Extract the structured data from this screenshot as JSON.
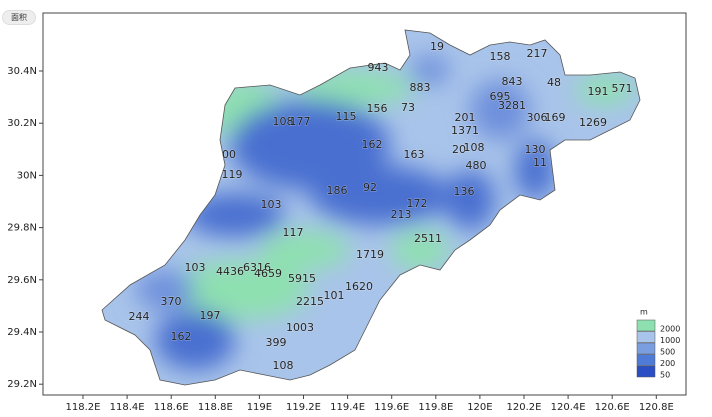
{
  "button": "面积",
  "x_axis": [
    "118.2E",
    "118.4E",
    "118.6E",
    "118.8E",
    "119E",
    "119.2E",
    "119.4E",
    "119.6E",
    "119.8E",
    "120E",
    "120.2E",
    "120.4E",
    "120.6E",
    "120.8E"
  ],
  "y_axis": [
    "30.4N",
    "30.2N",
    "30N",
    "29.8N",
    "29.6N",
    "29.4N",
    "29.2N"
  ],
  "station_labels": [
    19,
    158,
    217,
    943,
    883,
    843,
    48,
    191,
    571,
    695,
    3281,
    108,
    177,
    115,
    156,
    73,
    201,
    306,
    169,
    1269,
    1371,
    162,
    20,
    108,
    130,
    163,
    480,
    11,
    "00",
    119,
    186,
    92,
    136,
    103,
    172,
    213,
    117,
    2511,
    1719,
    103,
    4436,
    6316,
    4659,
    5915,
    1620,
    370,
    2215,
    101,
    244,
    197,
    1003,
    162,
    399,
    108
  ],
  "legend": {
    "unit": "m",
    "items": [
      {
        "label": 2000,
        "color": "#8ee0b0"
      },
      {
        "label": 1000,
        "color": "#a9c4ea"
      },
      {
        "label": 500,
        "color": "#7b9ee0"
      },
      {
        "label": 200,
        "color": "#4f7bd8"
      },
      {
        "label": 50,
        "color": "#2a4fc4"
      }
    ]
  }
}
